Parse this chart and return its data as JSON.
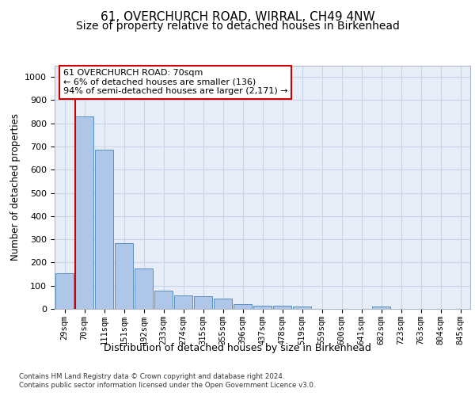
{
  "title1": "61, OVERCHURCH ROAD, WIRRAL, CH49 4NW",
  "title2": "Size of property relative to detached houses in Birkenhead",
  "xlabel_bottom": "Distribution of detached houses by size in Birkenhead",
  "ylabel": "Number of detached properties",
  "footer1": "Contains HM Land Registry data © Crown copyright and database right 2024.",
  "footer2": "Contains public sector information licensed under the Open Government Licence v3.0.",
  "categories": [
    "29sqm",
    "70sqm",
    "111sqm",
    "151sqm",
    "192sqm",
    "233sqm",
    "274sqm",
    "315sqm",
    "355sqm",
    "396sqm",
    "437sqm",
    "478sqm",
    "519sqm",
    "559sqm",
    "600sqm",
    "641sqm",
    "682sqm",
    "723sqm",
    "763sqm",
    "804sqm",
    "845sqm"
  ],
  "values": [
    152,
    830,
    685,
    283,
    175,
    80,
    57,
    53,
    43,
    22,
    13,
    12,
    10,
    0,
    0,
    0,
    11,
    0,
    0,
    0,
    0
  ],
  "bar_color": "#aec6e8",
  "bar_edge_color": "#5a8fc0",
  "highlight_bar_index": 1,
  "highlight_line_color": "#cc0000",
  "annotation_text": "61 OVERCHURCH ROAD: 70sqm\n← 6% of detached houses are smaller (136)\n94% of semi-detached houses are larger (2,171) →",
  "annotation_box_edgecolor": "#cc0000",
  "annotation_box_facecolor": "#ffffff",
  "ylim": [
    0,
    1050
  ],
  "yticks": [
    0,
    100,
    200,
    300,
    400,
    500,
    600,
    700,
    800,
    900,
    1000
  ],
  "grid_color": "#c8d4e8",
  "plot_bg_color": "#e8eef8",
  "title1_fontsize": 11,
  "title2_fontsize": 10,
  "tick_fontsize": 7.5,
  "ylabel_fontsize": 8.5,
  "xlabel_bottom_fontsize": 9,
  "footer_fontsize": 6.2
}
